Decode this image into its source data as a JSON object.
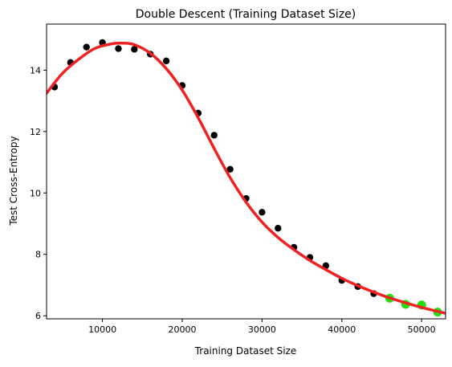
{
  "chart_data": {
    "type": "scatter",
    "title": "Double Descent (Training Dataset Size)",
    "xlabel": "Training Dataset Size",
    "ylabel": "Test Cross-Entropy",
    "xlim": [
      3000,
      53000
    ],
    "ylim": [
      5.9,
      15.5
    ],
    "x_ticks": [
      10000,
      20000,
      30000,
      40000,
      50000
    ],
    "y_ticks": [
      6,
      8,
      10,
      12,
      14
    ],
    "grid": false,
    "legend": "none",
    "series": [
      {
        "marker": "circle",
        "color": "#000000",
        "points": [
          [
            4000,
            13.45
          ],
          [
            6000,
            14.25
          ],
          [
            8000,
            14.75
          ],
          [
            10000,
            14.9
          ],
          [
            12000,
            14.7
          ],
          [
            14000,
            14.68
          ],
          [
            16000,
            14.52
          ],
          [
            18000,
            14.3
          ],
          [
            20000,
            13.5
          ],
          [
            22000,
            12.6
          ],
          [
            24000,
            11.88
          ],
          [
            26000,
            10.77
          ],
          [
            28000,
            9.82
          ],
          [
            30000,
            9.37
          ],
          [
            32000,
            8.85
          ],
          [
            34000,
            8.23
          ],
          [
            36000,
            7.9
          ],
          [
            38000,
            7.63
          ],
          [
            40000,
            7.15
          ],
          [
            42000,
            6.95
          ],
          [
            44000,
            6.72
          ]
        ]
      },
      {
        "marker": "circle",
        "color": "#22dd11",
        "points": [
          [
            46000,
            6.57
          ],
          [
            48000,
            6.37
          ],
          [
            50000,
            6.35
          ],
          [
            52000,
            6.12
          ]
        ]
      },
      {
        "marker": "line",
        "color": "#ee2222",
        "points": [
          [
            3000,
            13.25
          ],
          [
            5000,
            13.9
          ],
          [
            7000,
            14.35
          ],
          [
            9000,
            14.7
          ],
          [
            11000,
            14.85
          ],
          [
            12500,
            14.88
          ],
          [
            14000,
            14.83
          ],
          [
            16000,
            14.55
          ],
          [
            18000,
            14.05
          ],
          [
            20000,
            13.35
          ],
          [
            22000,
            12.45
          ],
          [
            24000,
            11.45
          ],
          [
            26000,
            10.5
          ],
          [
            28000,
            9.7
          ],
          [
            30000,
            9.05
          ],
          [
            32000,
            8.55
          ],
          [
            34000,
            8.15
          ],
          [
            36000,
            7.8
          ],
          [
            38000,
            7.5
          ],
          [
            40000,
            7.22
          ],
          [
            42000,
            6.98
          ],
          [
            44000,
            6.77
          ],
          [
            46000,
            6.58
          ],
          [
            48000,
            6.42
          ],
          [
            50000,
            6.27
          ],
          [
            52000,
            6.14
          ],
          [
            53000,
            6.08
          ]
        ]
      }
    ]
  }
}
